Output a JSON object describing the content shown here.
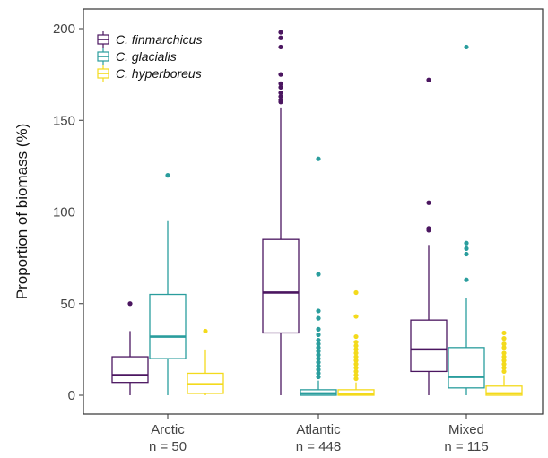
{
  "chart_data": {
    "type": "boxplot",
    "title": "",
    "ylabel": "Proportion of biomass (%)",
    "xlabel": "",
    "ylim": [
      -10,
      210
    ],
    "yticks": [
      0,
      50,
      100,
      150,
      200
    ],
    "grid": false,
    "legend_position": "top-left",
    "categories": [
      {
        "name": "Arctic",
        "n_label": "n = 50"
      },
      {
        "name": "Atlantic",
        "n_label": "n = 448"
      },
      {
        "name": "Mixed",
        "n_label": "n = 115"
      }
    ],
    "series": [
      {
        "name": "C. finmarchicus",
        "color": "#4b1660",
        "boxes": [
          {
            "q1": 7,
            "median": 11,
            "q3": 21,
            "whisker_low": 0,
            "whisker_high": 35,
            "outliers": [
              50
            ]
          },
          {
            "q1": 34,
            "median": 56,
            "q3": 85,
            "whisker_low": 0,
            "whisker_high": 157,
            "outliers": [
              160,
              161,
              163,
              165,
              168,
              170,
              175,
              190,
              195,
              198
            ]
          },
          {
            "q1": 13,
            "median": 25,
            "q3": 41,
            "whisker_low": 0,
            "whisker_high": 82,
            "outliers": [
              90,
              91,
              105,
              172
            ]
          }
        ]
      },
      {
        "name": "C. glacialis",
        "color": "#2a9d9d",
        "boxes": [
          {
            "q1": 20,
            "median": 32,
            "q3": 55,
            "whisker_low": 0,
            "whisker_high": 95,
            "outliers": [
              120
            ]
          },
          {
            "q1": 0,
            "median": 1,
            "q3": 3,
            "whisker_low": 0,
            "whisker_high": 8,
            "outliers": [
              10,
              12,
              14,
              16,
              18,
              20,
              22,
              24,
              26,
              28,
              30,
              33,
              36,
              42,
              46,
              66,
              129
            ]
          },
          {
            "q1": 4,
            "median": 10,
            "q3": 26,
            "whisker_low": 0,
            "whisker_high": 53,
            "outliers": [
              63,
              77,
              80,
              83,
              190
            ]
          }
        ]
      },
      {
        "name": "C. hyperboreus",
        "color": "#f3da1c",
        "boxes": [
          {
            "q1": 1,
            "median": 6,
            "q3": 12,
            "whisker_low": 0,
            "whisker_high": 25,
            "outliers": [
              35
            ]
          },
          {
            "q1": 0,
            "median": 0.5,
            "q3": 3,
            "whisker_low": 0,
            "whisker_high": 7,
            "outliers": [
              9,
              11,
              13,
              15,
              17,
              19,
              21,
              23,
              25,
              27,
              29,
              32,
              43,
              56
            ]
          },
          {
            "q1": 0,
            "median": 1,
            "q3": 5,
            "whisker_low": 0,
            "whisker_high": 11,
            "outliers": [
              13,
              15,
              17,
              19,
              21,
              23,
              26,
              28,
              31,
              34
            ]
          }
        ]
      }
    ]
  }
}
